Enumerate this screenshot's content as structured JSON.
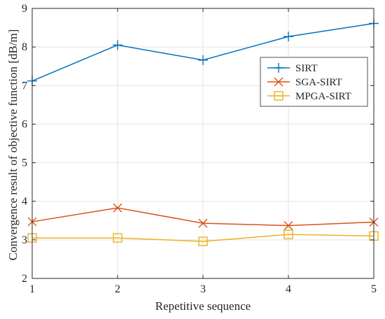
{
  "chart_data": {
    "type": "line",
    "x": [
      1,
      2,
      3,
      4,
      5
    ],
    "xlabel": "Repetitive sequence",
    "ylabel": "Convergence result of objective function [dB/m]",
    "xlim": [
      1,
      5
    ],
    "ylim": [
      2,
      9
    ],
    "xticks": [
      1,
      2,
      3,
      4,
      5
    ],
    "yticks": [
      2,
      3,
      4,
      5,
      6,
      7,
      8,
      9
    ],
    "grid": true,
    "legend_position": "top-right",
    "series": [
      {
        "name": "SIRT",
        "values": [
          7.12,
          8.05,
          7.66,
          8.27,
          8.61
        ],
        "color": "#0072bd",
        "marker": "plus"
      },
      {
        "name": "SGA-SIRT",
        "values": [
          3.47,
          3.83,
          3.43,
          3.37,
          3.46
        ],
        "color": "#d95319",
        "marker": "cross"
      },
      {
        "name": "MPGA-SIRT",
        "values": [
          3.05,
          3.05,
          2.96,
          3.14,
          3.1
        ],
        "color": "#edb120",
        "marker": "square"
      }
    ]
  }
}
